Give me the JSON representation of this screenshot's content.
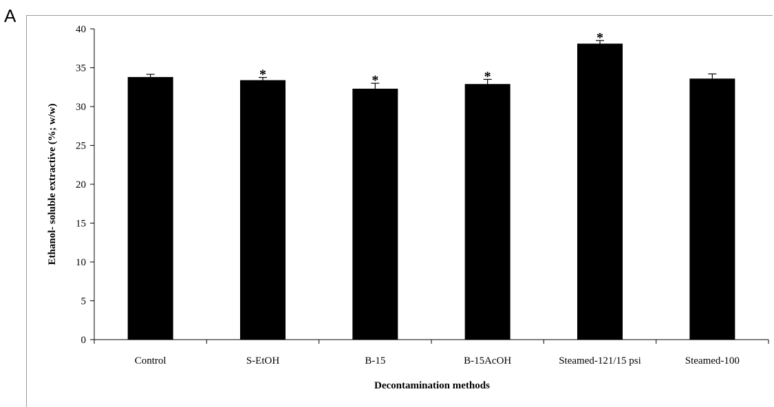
{
  "panel_label": "A",
  "chart_data": {
    "type": "bar",
    "title": "",
    "xlabel": "Decontamination methods",
    "ylabel": "Ethanol- soluble extractive (%; w/w)",
    "ylim": [
      0,
      40
    ],
    "yticks": [
      0,
      5,
      10,
      15,
      20,
      25,
      30,
      35,
      40
    ],
    "categories": [
      "Control",
      "S-EtOH",
      "B-15",
      "B-15AcOH",
      "Steamed-121/15 psi",
      "Steamed-100"
    ],
    "values": [
      33.8,
      33.4,
      32.3,
      32.9,
      38.1,
      33.6
    ],
    "errors": [
      0.35,
      0.35,
      0.7,
      0.6,
      0.4,
      0.6
    ],
    "significance": [
      "",
      "*",
      "*",
      "*",
      "*",
      ""
    ],
    "bar_color": "#000000",
    "grid": false,
    "legend": "none"
  }
}
